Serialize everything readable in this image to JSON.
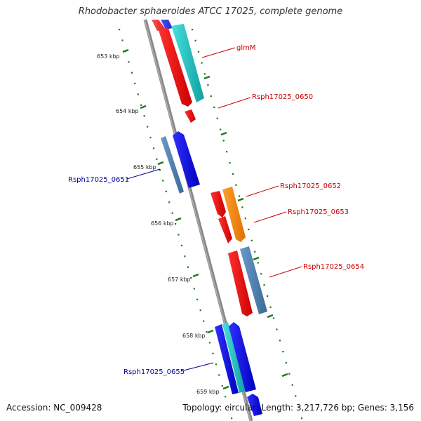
{
  "title": "Rhodobacter sphaeroides ATCC 17025, complete genome",
  "footer": {
    "accession": "Accession: NC_009428",
    "topology": "Topology: circular; Length: 3,217,726 bp; Genes: 3,156"
  },
  "ticks": [
    {
      "label": "653 kbp"
    },
    {
      "label": "654 kbp"
    },
    {
      "label": "655 kbp"
    },
    {
      "label": "656 kbp"
    },
    {
      "label": "657 kbp"
    },
    {
      "label": "658 kbp"
    },
    {
      "label": "659 kbp"
    }
  ],
  "genes": [
    {
      "label": "glmM",
      "strand": "+",
      "color": "#cc0000"
    },
    {
      "label": "Rsph17025_0650",
      "strand": "+",
      "color": "#cc0000"
    },
    {
      "label": "Rsph17025_0651",
      "strand": "-",
      "color": "#000099"
    },
    {
      "label": "Rsph17025_0652",
      "strand": "+",
      "color": "#cc0000"
    },
    {
      "label": "Rsph17025_0653",
      "strand": "+",
      "color": "#cc0000"
    },
    {
      "label": "Rsph17025_0654",
      "strand": "+",
      "color": "#cc0000"
    },
    {
      "label": "Rsph17025_0655",
      "strand": "-",
      "color": "#000099"
    }
  ],
  "colors": {
    "backbone": "#888888",
    "tick_dots": "#1a7a1a",
    "forward_cds": "#ff0000",
    "reverse_cds": "#0000ee",
    "cyan_feature": "#20c8c8",
    "orange_feature": "#ff8c00",
    "steelblue_feature": "#4682b4"
  }
}
